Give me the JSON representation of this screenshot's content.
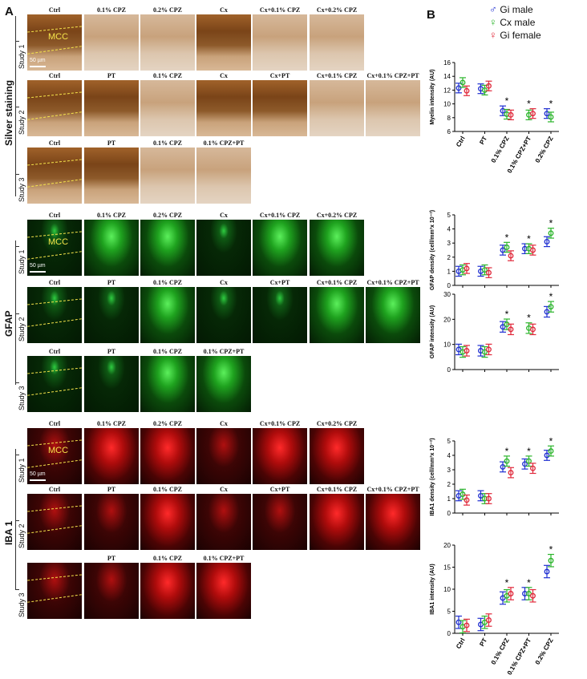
{
  "panels": {
    "a": "A",
    "b": "B"
  },
  "silver": {
    "group": "Silver staining",
    "studies": [
      "Study 1",
      "Study 2",
      "Study 3"
    ],
    "rows": [
      [
        "Ctrl",
        "0.1% CPZ",
        "0.2% CPZ",
        "Cx",
        "Cx+0.1% CPZ",
        "Cx+0.2% CPZ"
      ],
      [
        "Ctrl",
        "PT",
        "0.1% CPZ",
        "Cx",
        "Cx+PT",
        "Cx+0.1% CPZ",
        "Cx+0.1% CPZ+PT"
      ],
      [
        "Ctrl",
        "PT",
        "0.1% CPZ",
        "0.1% CPZ+PT"
      ]
    ]
  },
  "gfap": {
    "group": "GFAP",
    "studies": [
      "Study 1",
      "Study 2",
      "Study 3"
    ],
    "rows": [
      [
        "Ctrl",
        "0.1% CPZ",
        "0.2% CPZ",
        "Cx",
        "Cx+0.1% CPZ",
        "Cx+0.2% CPZ"
      ],
      [
        "Ctrl",
        "PT",
        "0.1% CPZ",
        "Cx",
        "Cx+PT",
        "Cx+0.1% CPZ",
        "Cx+0.1% CPZ+PT"
      ],
      [
        "Ctrl",
        "PT",
        "0.1% CPZ",
        "0.1% CPZ+PT"
      ]
    ]
  },
  "iba1": {
    "group": "IBA 1",
    "studies": [
      "Study 1",
      "Study 2",
      "Study 3"
    ],
    "rows": [
      [
        "Ctrl",
        "0.1% CPZ",
        "0.2% CPZ",
        "Cx",
        "Cx+0.1% CPZ",
        "Cx+0.2% CPZ"
      ],
      [
        "Ctrl",
        "PT",
        "0.1% CPZ",
        "Cx",
        "Cx+PT",
        "Cx+0.1% CPZ",
        "Cx+0.1% CPZ+PT"
      ],
      [
        "",
        "PT",
        "0.1% CPZ",
        "0.1% CPZ+PT"
      ]
    ]
  },
  "mcc_label": "MCC",
  "scale_label": "50 µm",
  "legend": [
    {
      "symbol": "♂",
      "name": "Gi male",
      "color": "#1f2fd1"
    },
    {
      "symbol": "♀",
      "name": "Cx male",
      "color": "#2bb52b"
    },
    {
      "symbol": "♀",
      "name": "Gi female",
      "color": "#e0283a"
    }
  ],
  "colors": {
    "gi_male": "#1f2fd1",
    "cx_male": "#2bb52b",
    "gi_female": "#e0283a"
  },
  "sig_marker": "*",
  "chart_data": [
    {
      "type": "scatter",
      "ylabel": "Myelin intensity (AU)",
      "ylim": [
        6,
        16
      ],
      "yticks": [
        6,
        8,
        10,
        12,
        14,
        16
      ],
      "categories": [
        "Ctrl",
        "PT",
        "0.1% CPZ",
        "0.1% CPZ+PT",
        "0.2% CPZ"
      ],
      "series": [
        {
          "name": "Gi male",
          "values": [
            12.3,
            12.2,
            9.0,
            null,
            8.6
          ]
        },
        {
          "name": "Cx male",
          "values": [
            13.1,
            12.0,
            8.5,
            8.4,
            8.1
          ]
        },
        {
          "name": "Gi female",
          "values": [
            11.9,
            12.6,
            8.4,
            8.6,
            null
          ]
        }
      ],
      "significant": [
        false,
        false,
        true,
        true,
        true
      ]
    },
    {
      "type": "scatter",
      "ylabel": "GFAP density (cell/mm²x 10⁻²)",
      "ylim": [
        0,
        5
      ],
      "yticks": [
        0,
        1,
        2,
        3,
        4,
        5
      ],
      "categories": [
        "Ctrl",
        "PT",
        "0.1% CPZ",
        "0.1% CPZ+PT",
        "0.2% CPZ"
      ],
      "series": [
        {
          "name": "Gi male",
          "values": [
            1.0,
            1.0,
            2.5,
            2.6,
            3.1
          ]
        },
        {
          "name": "Cx male",
          "values": [
            1.1,
            1.1,
            2.7,
            2.6,
            3.7
          ]
        },
        {
          "name": "Gi female",
          "values": [
            1.2,
            0.9,
            2.1,
            2.5,
            null
          ]
        }
      ],
      "significant": [
        false,
        false,
        true,
        true,
        true
      ]
    },
    {
      "type": "scatter",
      "ylabel": "GFAP intensity (AU)",
      "ylim": [
        0,
        30
      ],
      "yticks": [
        0,
        10,
        20,
        30
      ],
      "categories": [
        "Ctrl",
        "PT",
        "0.1% CPZ",
        "0.1% CPZ+PT",
        "0.2% CPZ"
      ],
      "series": [
        {
          "name": "Gi male",
          "values": [
            8.0,
            7.5,
            17.0,
            null,
            23.0
          ]
        },
        {
          "name": "Cx male",
          "values": [
            7.0,
            7.0,
            18.0,
            16.5,
            25.0
          ]
        },
        {
          "name": "Gi female",
          "values": [
            7.5,
            8.0,
            16.0,
            16.0,
            null
          ]
        }
      ],
      "significant": [
        false,
        false,
        true,
        true,
        true
      ]
    },
    {
      "type": "scatter",
      "ylabel": "IBA1 density (cell/mm²x 10⁻²)",
      "ylim": [
        0,
        5
      ],
      "yticks": [
        0,
        1,
        2,
        3,
        4,
        5
      ],
      "categories": [
        "Ctrl",
        "PT",
        "0.1% CPZ",
        "0.1% CPZ+PT",
        "0.2% CPZ"
      ],
      "series": [
        {
          "name": "Gi male",
          "values": [
            1.2,
            1.2,
            3.2,
            3.4,
            4.0
          ]
        },
        {
          "name": "Cx male",
          "values": [
            1.3,
            1.0,
            3.6,
            3.6,
            4.3
          ]
        },
        {
          "name": "Gi female",
          "values": [
            0.9,
            1.0,
            2.8,
            3.1,
            null
          ]
        }
      ],
      "significant": [
        false,
        false,
        true,
        true,
        true
      ]
    },
    {
      "type": "scatter",
      "ylabel": "IBA1 intensity (AU)",
      "ylim": [
        0,
        20
      ],
      "yticks": [
        0,
        5,
        10,
        15,
        20
      ],
      "categories": [
        "Ctrl",
        "PT",
        "0.1% CPZ",
        "0.1% CPZ+PT",
        "0.2% CPZ"
      ],
      "series": [
        {
          "name": "Gi male",
          "values": [
            2.5,
            2.0,
            8.0,
            9.0,
            14.0
          ]
        },
        {
          "name": "Cx male",
          "values": [
            1.5,
            2.5,
            8.5,
            9.0,
            16.5
          ]
        },
        {
          "name": "Gi female",
          "values": [
            1.8,
            3.0,
            9.0,
            8.5,
            null
          ]
        }
      ],
      "significant": [
        false,
        false,
        true,
        true,
        true
      ]
    }
  ]
}
